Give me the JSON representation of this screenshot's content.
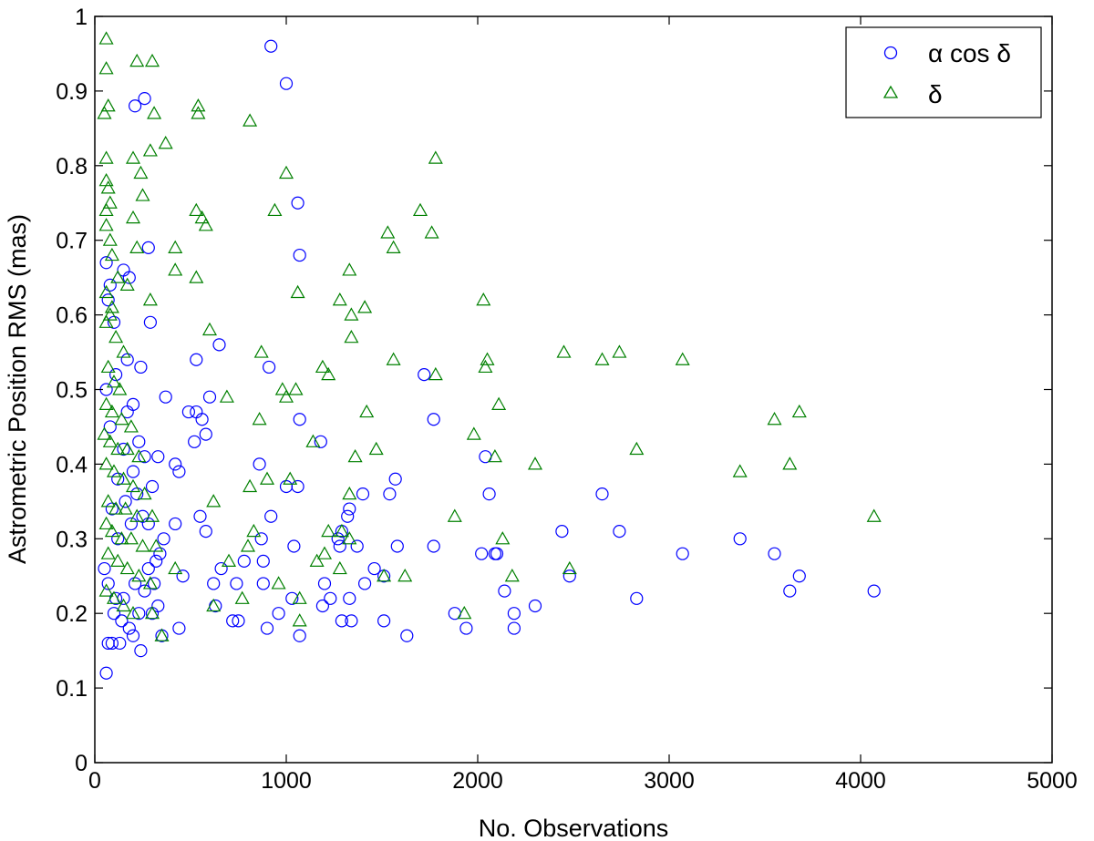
{
  "chart_data": {
    "type": "scatter",
    "title": "",
    "xlabel": "No. Observations",
    "ylabel": "Astrometric Position RMS (mas)",
    "xlim": [
      0,
      5000
    ],
    "ylim": [
      0,
      1
    ],
    "x_ticks": [
      "0",
      "1000",
      "2000",
      "3000",
      "4000",
      "5000"
    ],
    "y_ticks": [
      "0",
      "0.1",
      "0.2",
      "0.3",
      "0.4",
      "0.5",
      "0.6",
      "0.7",
      "0.8",
      "0.9",
      "1"
    ],
    "grid": false,
    "legend_position": "top-right",
    "series": [
      {
        "name": "α cos δ",
        "marker": "circle",
        "color": "#0000ff",
        "points": [
          [
            920,
            0.96
          ],
          [
            1000,
            0.91
          ],
          [
            260,
            0.89
          ],
          [
            210,
            0.88
          ],
          [
            1060,
            0.75
          ],
          [
            1070,
            0.68
          ],
          [
            280,
            0.69
          ],
          [
            150,
            0.66
          ],
          [
            60,
            0.67
          ],
          [
            80,
            0.64
          ],
          [
            180,
            0.65
          ],
          [
            70,
            0.62
          ],
          [
            290,
            0.59
          ],
          [
            100,
            0.59
          ],
          [
            650,
            0.56
          ],
          [
            170,
            0.54
          ],
          [
            530,
            0.54
          ],
          [
            910,
            0.53
          ],
          [
            240,
            0.53
          ],
          [
            1720,
            0.52
          ],
          [
            370,
            0.49
          ],
          [
            600,
            0.49
          ],
          [
            490,
            0.47
          ],
          [
            530,
            0.47
          ],
          [
            560,
            0.46
          ],
          [
            1070,
            0.46
          ],
          [
            1770,
            0.46
          ],
          [
            200,
            0.48
          ],
          [
            520,
            0.43
          ],
          [
            1180,
            0.43
          ],
          [
            420,
            0.4
          ],
          [
            440,
            0.39
          ],
          [
            580,
            0.44
          ],
          [
            860,
            0.4
          ],
          [
            1000,
            0.37
          ],
          [
            1060,
            0.37
          ],
          [
            2040,
            0.41
          ],
          [
            1570,
            0.38
          ],
          [
            1400,
            0.36
          ],
          [
            2060,
            0.36
          ],
          [
            1540,
            0.36
          ],
          [
            2650,
            0.36
          ],
          [
            920,
            0.33
          ],
          [
            1330,
            0.34
          ],
          [
            1320,
            0.33
          ],
          [
            420,
            0.32
          ],
          [
            550,
            0.33
          ],
          [
            580,
            0.31
          ],
          [
            870,
            0.3
          ],
          [
            1270,
            0.3
          ],
          [
            1280,
            0.29
          ],
          [
            1290,
            0.31
          ],
          [
            1370,
            0.29
          ],
          [
            1580,
            0.29
          ],
          [
            1770,
            0.29
          ],
          [
            2020,
            0.28
          ],
          [
            2090,
            0.28
          ],
          [
            2100,
            0.28
          ],
          [
            2440,
            0.31
          ],
          [
            2740,
            0.31
          ],
          [
            3070,
            0.28
          ],
          [
            3370,
            0.3
          ],
          [
            3550,
            0.28
          ],
          [
            1040,
            0.29
          ],
          [
            880,
            0.27
          ],
          [
            780,
            0.27
          ],
          [
            660,
            0.26
          ],
          [
            460,
            0.25
          ],
          [
            310,
            0.24
          ],
          [
            620,
            0.24
          ],
          [
            1200,
            0.24
          ],
          [
            1410,
            0.24
          ],
          [
            1510,
            0.25
          ],
          [
            1460,
            0.26
          ],
          [
            2480,
            0.25
          ],
          [
            3680,
            0.25
          ],
          [
            880,
            0.24
          ],
          [
            740,
            0.24
          ],
          [
            1030,
            0.22
          ],
          [
            1190,
            0.21
          ],
          [
            1230,
            0.22
          ],
          [
            1330,
            0.22
          ],
          [
            1290,
            0.19
          ],
          [
            1340,
            0.19
          ],
          [
            1510,
            0.19
          ],
          [
            1880,
            0.2
          ],
          [
            2190,
            0.2
          ],
          [
            2300,
            0.21
          ],
          [
            2830,
            0.22
          ],
          [
            3630,
            0.23
          ],
          [
            4070,
            0.23
          ],
          [
            2140,
            0.23
          ],
          [
            960,
            0.2
          ],
          [
            900,
            0.18
          ],
          [
            720,
            0.19
          ],
          [
            750,
            0.19
          ],
          [
            630,
            0.21
          ],
          [
            440,
            0.18
          ],
          [
            350,
            0.17
          ],
          [
            1070,
            0.17
          ],
          [
            1630,
            0.17
          ],
          [
            1940,
            0.18
          ],
          [
            2190,
            0.18
          ],
          [
            240,
            0.15
          ],
          [
            60,
            0.12
          ],
          [
            70,
            0.16
          ],
          [
            90,
            0.16
          ],
          [
            130,
            0.16
          ],
          [
            200,
            0.17
          ],
          [
            230,
            0.2
          ],
          [
            300,
            0.2
          ],
          [
            330,
            0.21
          ],
          [
            100,
            0.2
          ],
          [
            150,
            0.22
          ],
          [
            210,
            0.24
          ],
          [
            280,
            0.26
          ],
          [
            340,
            0.28
          ],
          [
            120,
            0.3
          ],
          [
            190,
            0.32
          ],
          [
            250,
            0.33
          ],
          [
            90,
            0.34
          ],
          [
            160,
            0.35
          ],
          [
            220,
            0.36
          ],
          [
            300,
            0.37
          ],
          [
            120,
            0.38
          ],
          [
            200,
            0.39
          ],
          [
            260,
            0.41
          ],
          [
            330,
            0.41
          ],
          [
            150,
            0.42
          ],
          [
            230,
            0.43
          ],
          [
            80,
            0.45
          ],
          [
            170,
            0.47
          ],
          [
            60,
            0.5
          ],
          [
            110,
            0.52
          ],
          [
            50,
            0.26
          ],
          [
            70,
            0.24
          ],
          [
            110,
            0.22
          ],
          [
            140,
            0.19
          ],
          [
            180,
            0.18
          ],
          [
            260,
            0.23
          ],
          [
            320,
            0.27
          ],
          [
            360,
            0.3
          ],
          [
            280,
            0.32
          ]
        ]
      },
      {
        "name": "δ",
        "marker": "triangle",
        "color": "#008000",
        "points": [
          [
            60,
            0.97
          ],
          [
            300,
            0.94
          ],
          [
            220,
            0.94
          ],
          [
            60,
            0.93
          ],
          [
            70,
            0.88
          ],
          [
            540,
            0.88
          ],
          [
            50,
            0.87
          ],
          [
            310,
            0.87
          ],
          [
            540,
            0.87
          ],
          [
            810,
            0.86
          ],
          [
            370,
            0.83
          ],
          [
            290,
            0.82
          ],
          [
            1780,
            0.81
          ],
          [
            60,
            0.81
          ],
          [
            200,
            0.81
          ],
          [
            1000,
            0.79
          ],
          [
            240,
            0.79
          ],
          [
            70,
            0.77
          ],
          [
            250,
            0.76
          ],
          [
            1700,
            0.74
          ],
          [
            940,
            0.74
          ],
          [
            530,
            0.74
          ],
          [
            560,
            0.73
          ],
          [
            200,
            0.73
          ],
          [
            580,
            0.72
          ],
          [
            1530,
            0.71
          ],
          [
            1760,
            0.71
          ],
          [
            1560,
            0.69
          ],
          [
            420,
            0.69
          ],
          [
            220,
            0.69
          ],
          [
            1060,
            0.63
          ],
          [
            530,
            0.65
          ],
          [
            420,
            0.66
          ],
          [
            1330,
            0.66
          ],
          [
            1410,
            0.61
          ],
          [
            1280,
            0.62
          ],
          [
            2030,
            0.62
          ],
          [
            1340,
            0.6
          ],
          [
            290,
            0.62
          ],
          [
            600,
            0.58
          ],
          [
            1340,
            0.57
          ],
          [
            870,
            0.55
          ],
          [
            1560,
            0.54
          ],
          [
            2450,
            0.55
          ],
          [
            2740,
            0.55
          ],
          [
            2650,
            0.54
          ],
          [
            3070,
            0.54
          ],
          [
            2050,
            0.54
          ],
          [
            2040,
            0.53
          ],
          [
            1190,
            0.53
          ],
          [
            1220,
            0.52
          ],
          [
            1780,
            0.52
          ],
          [
            980,
            0.5
          ],
          [
            1050,
            0.5
          ],
          [
            1000,
            0.49
          ],
          [
            2110,
            0.48
          ],
          [
            1420,
            0.47
          ],
          [
            690,
            0.49
          ],
          [
            860,
            0.46
          ],
          [
            3550,
            0.46
          ],
          [
            3680,
            0.47
          ],
          [
            1470,
            0.42
          ],
          [
            1980,
            0.44
          ],
          [
            2830,
            0.42
          ],
          [
            1140,
            0.43
          ],
          [
            2090,
            0.41
          ],
          [
            1360,
            0.41
          ],
          [
            2300,
            0.4
          ],
          [
            3370,
            0.39
          ],
          [
            3630,
            0.4
          ],
          [
            1020,
            0.38
          ],
          [
            900,
            0.38
          ],
          [
            810,
            0.37
          ],
          [
            620,
            0.35
          ],
          [
            1330,
            0.36
          ],
          [
            1880,
            0.33
          ],
          [
            1220,
            0.31
          ],
          [
            1290,
            0.31
          ],
          [
            1330,
            0.3
          ],
          [
            4070,
            0.33
          ],
          [
            2130,
            0.3
          ],
          [
            1160,
            0.27
          ],
          [
            1200,
            0.28
          ],
          [
            800,
            0.29
          ],
          [
            830,
            0.31
          ],
          [
            1280,
            0.26
          ],
          [
            2180,
            0.25
          ],
          [
            2480,
            0.26
          ],
          [
            1510,
            0.25
          ],
          [
            1620,
            0.25
          ],
          [
            960,
            0.24
          ],
          [
            1070,
            0.22
          ],
          [
            1930,
            0.2
          ],
          [
            1070,
            0.19
          ],
          [
            770,
            0.22
          ],
          [
            620,
            0.21
          ],
          [
            700,
            0.27
          ],
          [
            420,
            0.26
          ],
          [
            350,
            0.17
          ],
          [
            300,
            0.2
          ],
          [
            60,
            0.59
          ],
          [
            80,
            0.6
          ],
          [
            110,
            0.57
          ],
          [
            150,
            0.55
          ],
          [
            70,
            0.53
          ],
          [
            100,
            0.51
          ],
          [
            130,
            0.5
          ],
          [
            60,
            0.48
          ],
          [
            90,
            0.47
          ],
          [
            140,
            0.46
          ],
          [
            190,
            0.45
          ],
          [
            50,
            0.44
          ],
          [
            80,
            0.43
          ],
          [
            120,
            0.42
          ],
          [
            170,
            0.42
          ],
          [
            230,
            0.41
          ],
          [
            60,
            0.4
          ],
          [
            100,
            0.39
          ],
          [
            150,
            0.38
          ],
          [
            200,
            0.37
          ],
          [
            260,
            0.36
          ],
          [
            70,
            0.35
          ],
          [
            110,
            0.34
          ],
          [
            160,
            0.34
          ],
          [
            220,
            0.33
          ],
          [
            300,
            0.33
          ],
          [
            60,
            0.32
          ],
          [
            90,
            0.31
          ],
          [
            140,
            0.3
          ],
          [
            190,
            0.3
          ],
          [
            250,
            0.29
          ],
          [
            320,
            0.29
          ],
          [
            70,
            0.28
          ],
          [
            120,
            0.27
          ],
          [
            170,
            0.26
          ],
          [
            230,
            0.25
          ],
          [
            290,
            0.24
          ],
          [
            60,
            0.23
          ],
          [
            100,
            0.22
          ],
          [
            150,
            0.21
          ],
          [
            200,
            0.2
          ],
          [
            80,
            0.7
          ],
          [
            60,
            0.72
          ],
          [
            90,
            0.68
          ],
          [
            120,
            0.65
          ],
          [
            170,
            0.64
          ],
          [
            60,
            0.63
          ],
          [
            90,
            0.61
          ],
          [
            60,
            0.78
          ],
          [
            80,
            0.75
          ],
          [
            60,
            0.74
          ]
        ]
      }
    ]
  }
}
